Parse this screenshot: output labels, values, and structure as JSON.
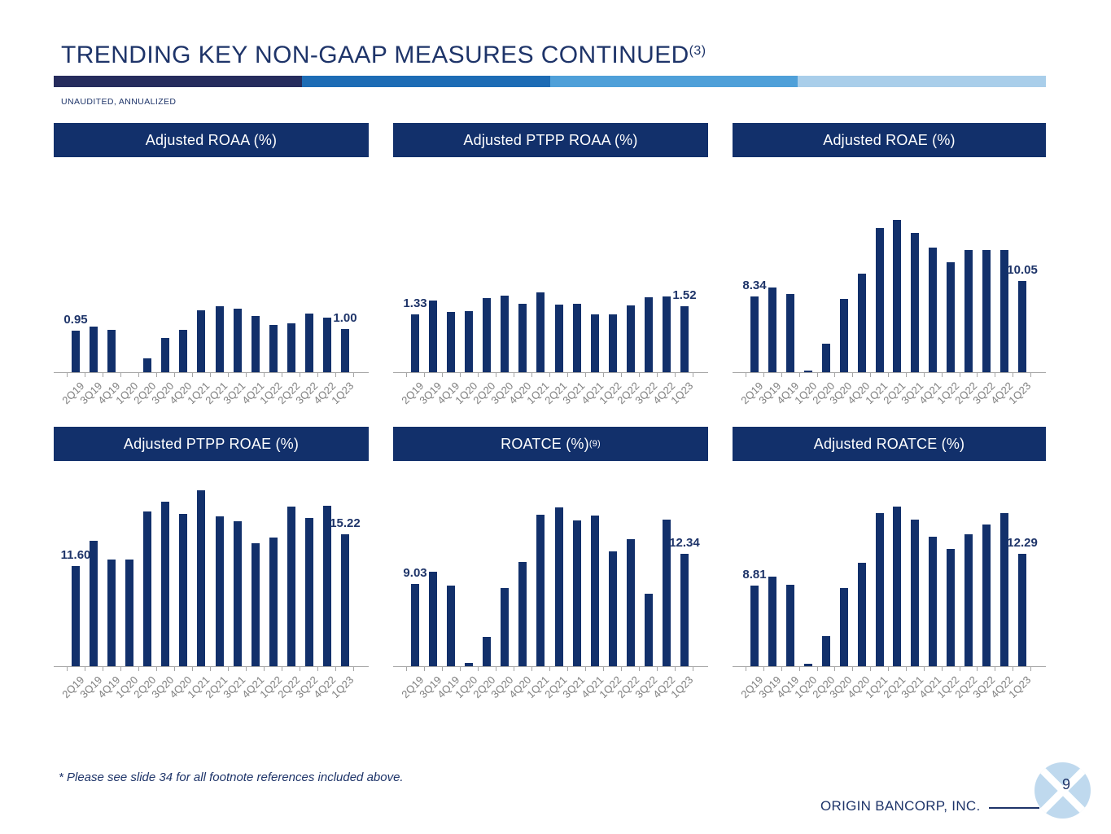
{
  "slide": {
    "title": "TRENDING KEY NON-GAAP MEASURES CONTINUED",
    "title_sup": "(3)",
    "subtitle": "UNAUDITED, ANNUALIZED",
    "footnote": "* Please see slide 34 for all footnote references included above.",
    "company": "ORIGIN BANCORP, INC.",
    "page_number": "9"
  },
  "colors": {
    "navy": "#1E3469",
    "bar": "#12306B",
    "band": "#12306B",
    "band1": "#262C5D",
    "band2": "#1D6CB5",
    "band3": "#4FA0D9",
    "band4": "#A9CEEA",
    "axis": "#A6A6A6",
    "label_gray": "#7F7F7F",
    "logo_blue": "#BFD9EE"
  },
  "chart_data": [
    {
      "type": "bar",
      "title": "Adjusted ROAA (%)",
      "title_sup": "",
      "categories": [
        "2Q19",
        "3Q19",
        "4Q19",
        "1Q20",
        "2Q20",
        "3Q20",
        "4Q20",
        "1Q21",
        "2Q21",
        "3Q21",
        "4Q21",
        "1Q22",
        "2Q22",
        "3Q22",
        "4Q22",
        "1Q23"
      ],
      "values": [
        0.95,
        1.05,
        0.98,
        0.0,
        0.31,
        0.78,
        0.97,
        1.43,
        1.51,
        1.46,
        1.3,
        1.09,
        1.12,
        1.35,
        1.26,
        1.0
      ],
      "first_label": "0.95",
      "last_label": "1.00",
      "ymax": 4.95,
      "xlabel": "",
      "ylabel": "",
      "grid": false,
      "legend": "none"
    },
    {
      "type": "bar",
      "title": "Adjusted PTPP ROAA (%)",
      "title_sup": "",
      "categories": [
        "2Q19",
        "3Q19",
        "4Q19",
        "1Q20",
        "2Q20",
        "3Q20",
        "4Q20",
        "1Q21",
        "2Q21",
        "3Q21",
        "4Q21",
        "1Q22",
        "2Q22",
        "3Q22",
        "4Q22",
        "1Q23"
      ],
      "values": [
        1.33,
        1.65,
        1.39,
        1.4,
        1.71,
        1.76,
        1.58,
        1.83,
        1.55,
        1.58,
        1.34,
        1.33,
        1.54,
        1.73,
        1.75,
        1.52
      ],
      "first_label": "1.33",
      "last_label": "1.52",
      "ymax": 4.95,
      "xlabel": "",
      "ylabel": "",
      "grid": false,
      "legend": "none"
    },
    {
      "type": "bar",
      "title": "Adjusted ROAE (%)",
      "title_sup": "",
      "categories": [
        "2Q19",
        "3Q19",
        "4Q19",
        "1Q20",
        "2Q20",
        "3Q20",
        "4Q20",
        "1Q21",
        "2Q21",
        "3Q21",
        "4Q21",
        "1Q22",
        "2Q22",
        "3Q22",
        "4Q22",
        "1Q23"
      ],
      "values": [
        8.34,
        9.38,
        8.58,
        0.15,
        3.13,
        8.04,
        10.87,
        15.85,
        16.77,
        15.34,
        13.75,
        12.15,
        13.45,
        13.5,
        13.45,
        10.05
      ],
      "first_label": "8.34",
      "last_label": "10.05",
      "ymax": 23.7,
      "xlabel": "",
      "ylabel": "",
      "grid": false,
      "legend": "none"
    },
    {
      "type": "bar",
      "title": "Adjusted PTPP ROAE (%)",
      "title_sup": "",
      "categories": [
        "2Q19",
        "3Q19",
        "4Q19",
        "1Q20",
        "2Q20",
        "3Q20",
        "4Q20",
        "1Q21",
        "2Q21",
        "3Q21",
        "4Q21",
        "1Q22",
        "2Q22",
        "3Q22",
        "4Q22",
        "1Q23"
      ],
      "values": [
        11.6,
        14.53,
        12.35,
        12.35,
        17.87,
        18.96,
        17.62,
        20.3,
        17.34,
        16.71,
        14.19,
        14.84,
        18.43,
        17.09,
        18.55,
        15.22
      ],
      "first_label": "11.60",
      "last_label": "15.22",
      "ymax": 23.7,
      "xlabel": "",
      "ylabel": "",
      "grid": false,
      "legend": "none"
    },
    {
      "type": "bar",
      "title": "ROATCE (%)",
      "title_sup": "(9)",
      "categories": [
        "2Q19",
        "3Q19",
        "4Q19",
        "1Q20",
        "2Q20",
        "3Q20",
        "4Q20",
        "1Q21",
        "2Q21",
        "3Q21",
        "4Q21",
        "1Q22",
        "2Q22",
        "3Q22",
        "4Q22",
        "1Q23"
      ],
      "values": [
        9.03,
        10.39,
        8.88,
        0.38,
        3.26,
        8.61,
        11.4,
        16.64,
        17.41,
        15.98,
        16.49,
        12.61,
        13.91,
        7.99,
        16.07,
        12.34
      ],
      "first_label": "9.03",
      "last_label": "12.34",
      "ymax": 22.5,
      "xlabel": "",
      "ylabel": "",
      "grid": false,
      "legend": "none"
    },
    {
      "type": "bar",
      "title": "Adjusted ROATCE (%)",
      "title_sup": "",
      "categories": [
        "2Q19",
        "3Q19",
        "4Q19",
        "1Q20",
        "2Q20",
        "3Q20",
        "4Q20",
        "1Q21",
        "2Q21",
        "3Q21",
        "4Q21",
        "1Q22",
        "2Q22",
        "3Q22",
        "4Q22",
        "1Q23"
      ],
      "values": [
        8.81,
        9.86,
        8.94,
        0.3,
        3.28,
        8.58,
        11.35,
        16.77,
        17.52,
        16.09,
        14.24,
        12.9,
        14.45,
        15.52,
        16.77,
        12.29
      ],
      "first_label": "8.81",
      "last_label": "12.29",
      "ymax": 22.5,
      "xlabel": "",
      "ylabel": "",
      "grid": false,
      "legend": "none"
    }
  ]
}
